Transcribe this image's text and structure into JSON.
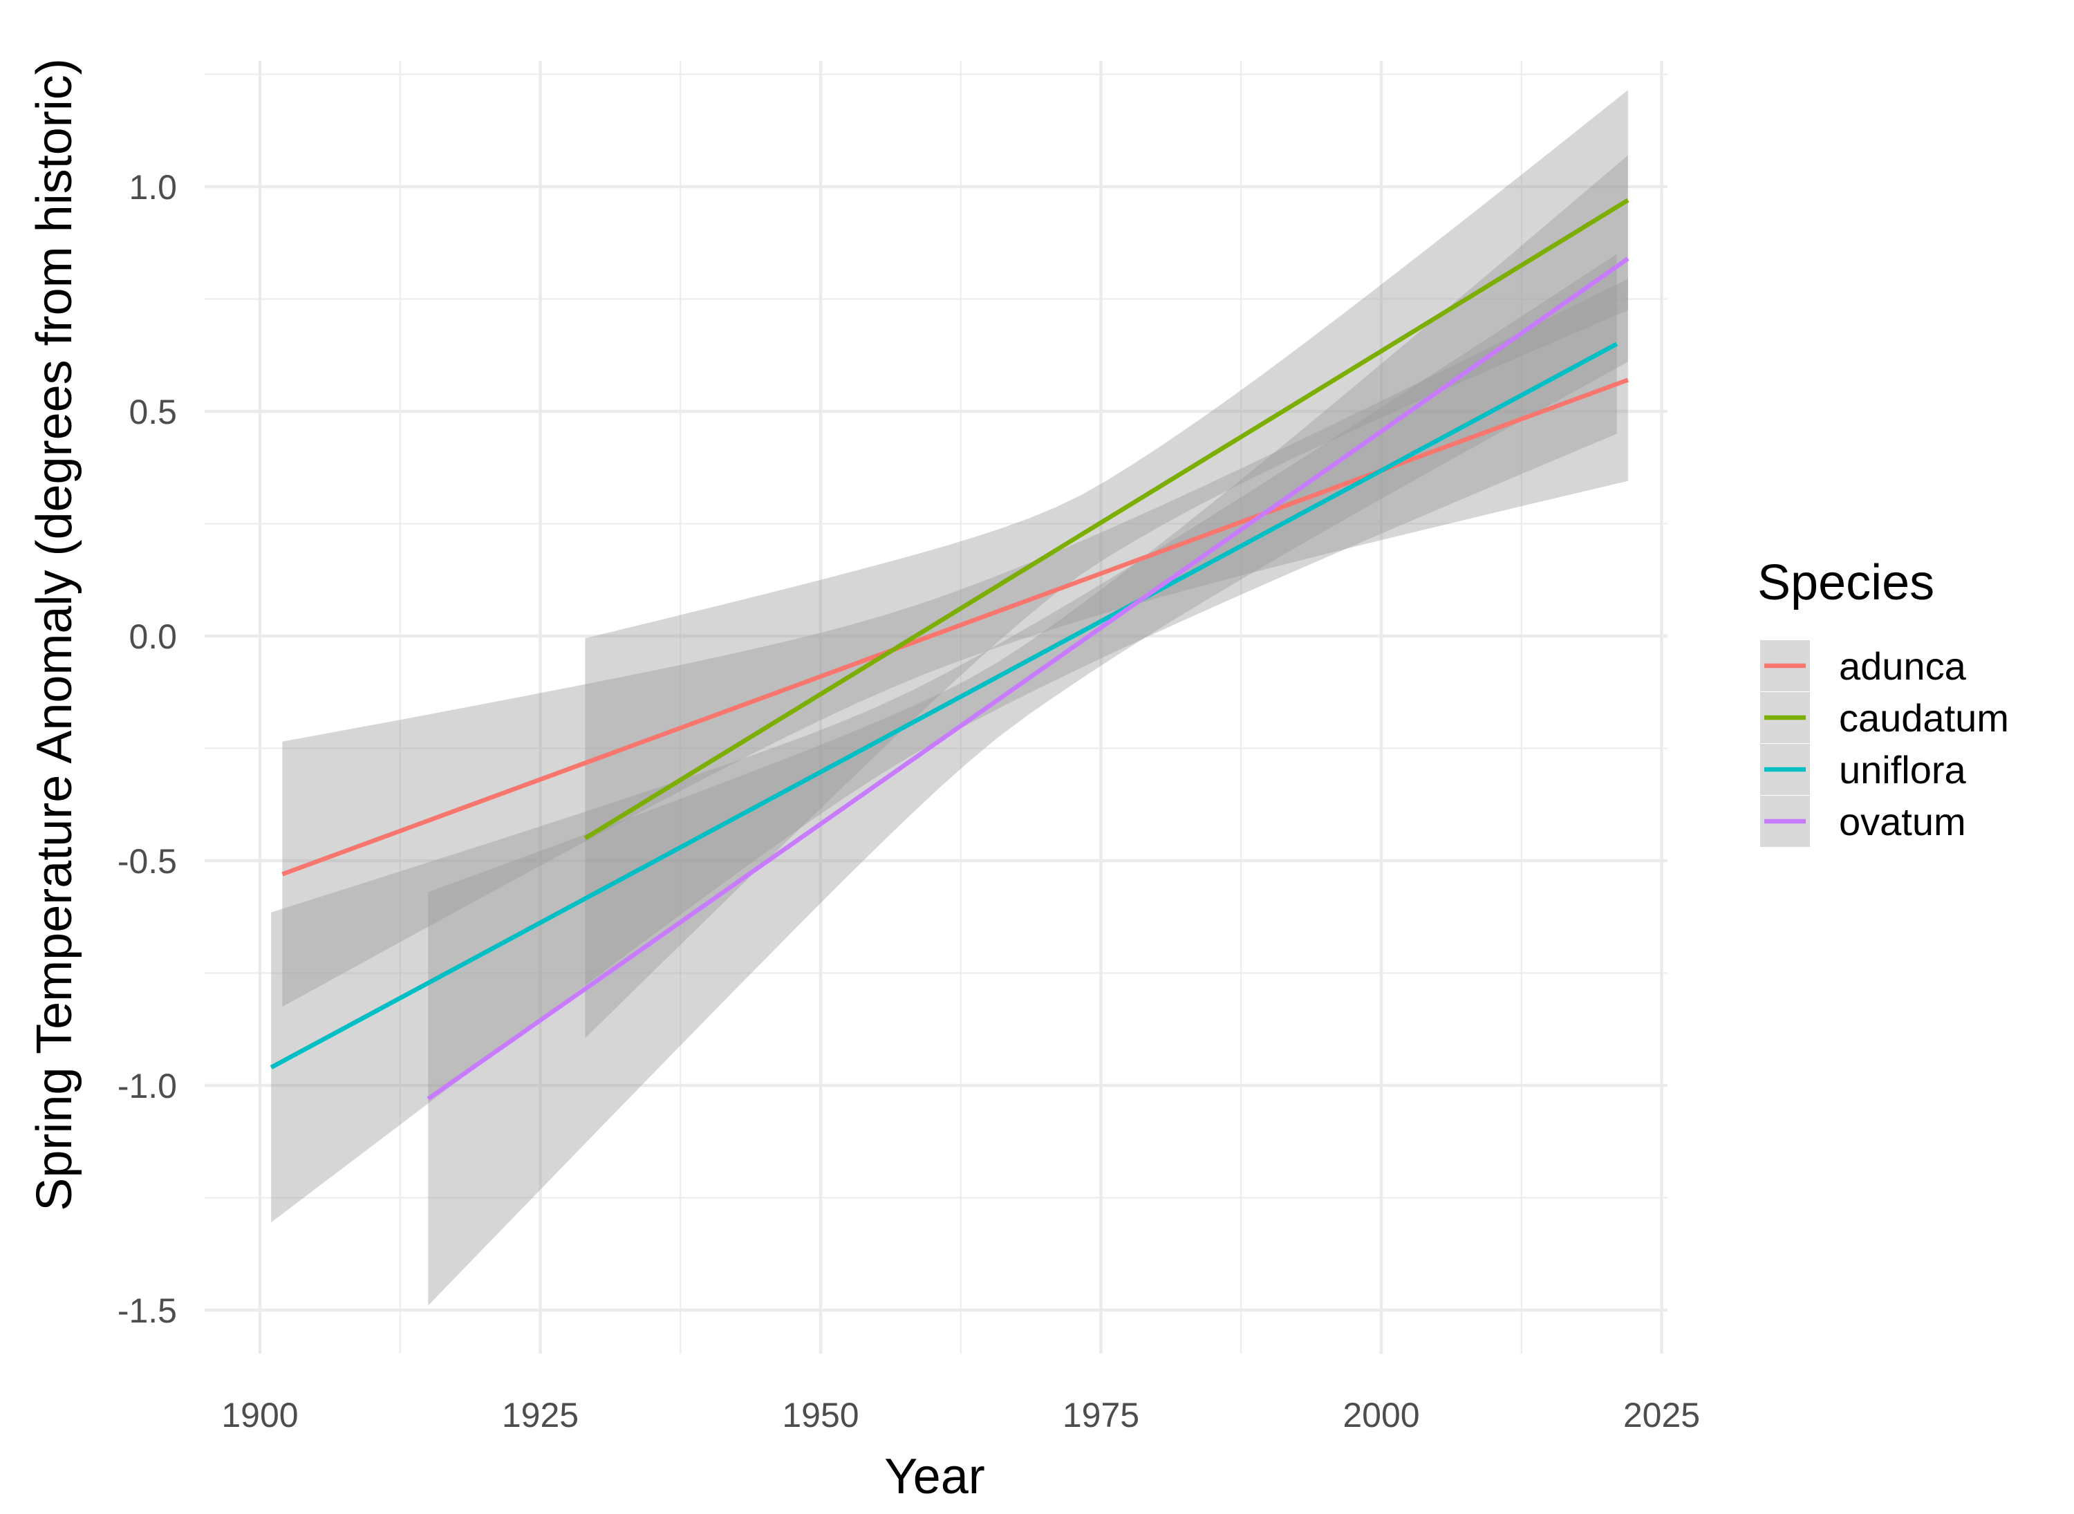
{
  "chart_data": {
    "type": "line",
    "title": "",
    "xlabel": "Year",
    "ylabel": "Spring Temperature Anomaly (degrees from historic)",
    "xlim": [
      1895,
      2028
    ],
    "ylim": [
      -1.6,
      1.25
    ],
    "x_ticks": [
      1900,
      1925,
      1950,
      1975,
      2000,
      2025
    ],
    "x_tick_labels": [
      "1900",
      "1925",
      "1950",
      "1975",
      "2000",
      "2025"
    ],
    "y_ticks": [
      -1.5,
      -1.0,
      -0.5,
      0.0,
      0.5,
      1.0
    ],
    "y_tick_labels": [
      "-1.5",
      "-1.0",
      "-0.5",
      "0.0",
      "0.5",
      "1.0"
    ],
    "grid": true,
    "legend": {
      "title": "Species",
      "position": "right"
    },
    "series": [
      {
        "name": "adunca",
        "color": "#F8766D",
        "x": [
          1902,
          2022
        ],
        "y": [
          -0.53,
          0.57
        ],
        "ci_lower": [
          -0.83,
          0.41
        ],
        "ci_upper": [
          -0.24,
          0.86
        ]
      },
      {
        "name": "caudatum",
        "color": "#7CAE00",
        "x": [
          1929,
          2022
        ],
        "y": [
          -0.45,
          0.97
        ],
        "ci_lower": [
          -0.9,
          0.72
        ],
        "ci_upper": [
          -0.01,
          1.21
        ]
      },
      {
        "name": "uniflora",
        "color": "#00BFC4",
        "x": [
          1901,
          2021
        ],
        "y": [
          -0.96,
          0.65
        ],
        "ci_lower": [
          -1.3,
          0.45
        ],
        "ci_upper": [
          -0.61,
          0.85
        ]
      },
      {
        "name": "ovatum",
        "color": "#C77CFF",
        "x": [
          1915,
          2022
        ],
        "y": [
          -1.03,
          0.84
        ],
        "ci_lower": [
          -1.49,
          0.61
        ],
        "ci_upper": [
          -0.57,
          1.07
        ]
      }
    ]
  }
}
